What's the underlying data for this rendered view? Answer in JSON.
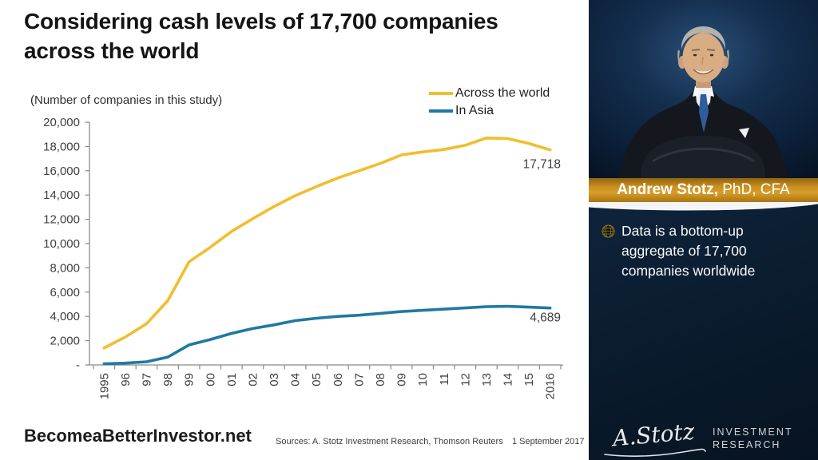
{
  "title": {
    "line1": "Considering cash levels of 17,700 companies",
    "line2": "across the world"
  },
  "chart_data": {
    "type": "line",
    "subtitle": "(Number of companies in this study)",
    "categories": [
      "1995",
      "96",
      "97",
      "98",
      "99",
      "00",
      "01",
      "02",
      "03",
      "04",
      "05",
      "06",
      "07",
      "08",
      "09",
      "10",
      "11",
      "12",
      "13",
      "14",
      "15",
      "2016"
    ],
    "series": [
      {
        "name": "Across the world",
        "color": "#F0BE2E",
        "values": [
          1400,
          2300,
          3400,
          5300,
          8500,
          9700,
          11000,
          12050,
          13050,
          13950,
          14700,
          15400,
          16000,
          16600,
          17300,
          17550,
          17750,
          18100,
          18700,
          18650,
          18250,
          17718
        ],
        "end_label": "17,718"
      },
      {
        "name": "In Asia",
        "color": "#1F7AA0",
        "values": [
          100,
          150,
          260,
          650,
          1650,
          2100,
          2600,
          3000,
          3300,
          3650,
          3850,
          4000,
          4100,
          4250,
          4400,
          4500,
          4600,
          4700,
          4800,
          4830,
          4760,
          4689
        ],
        "end_label": "4,689"
      }
    ],
    "ylim": [
      0,
      20000
    ],
    "ytick_step": 2000,
    "ytick_labels": [
      "-",
      "2,000",
      "4,000",
      "6,000",
      "8,000",
      "10,000",
      "12,000",
      "14,000",
      "16,000",
      "18,000",
      "20,000"
    ],
    "legend_position": "top-right",
    "grid": false
  },
  "sidebar": {
    "person_name_bold": "Andrew Stotz,",
    "person_credentials": " PhD, CFA",
    "bullet_icon": "globe-icon",
    "bullet_text": "Data is a bottom-up aggregate of 17,700 companies worldwide",
    "logo_signature": "A.Stotz",
    "logo_text_line1": "INVESTMENT",
    "logo_text_line2": "RESEARCH"
  },
  "footer": {
    "site": "BecomeaBetterInvestor.net",
    "sources": "Sources: A. Stotz Investment Research, Thomson Reuters",
    "date": "1 September 2017"
  },
  "colors": {
    "series_world": "#F0BE2E",
    "series_asia": "#1F7AA0",
    "banner_gold": "#C98E1F",
    "sidebar_navy": "#0D2138",
    "axis_gray": "#8A8A8A",
    "text_dark": "#141414"
  }
}
